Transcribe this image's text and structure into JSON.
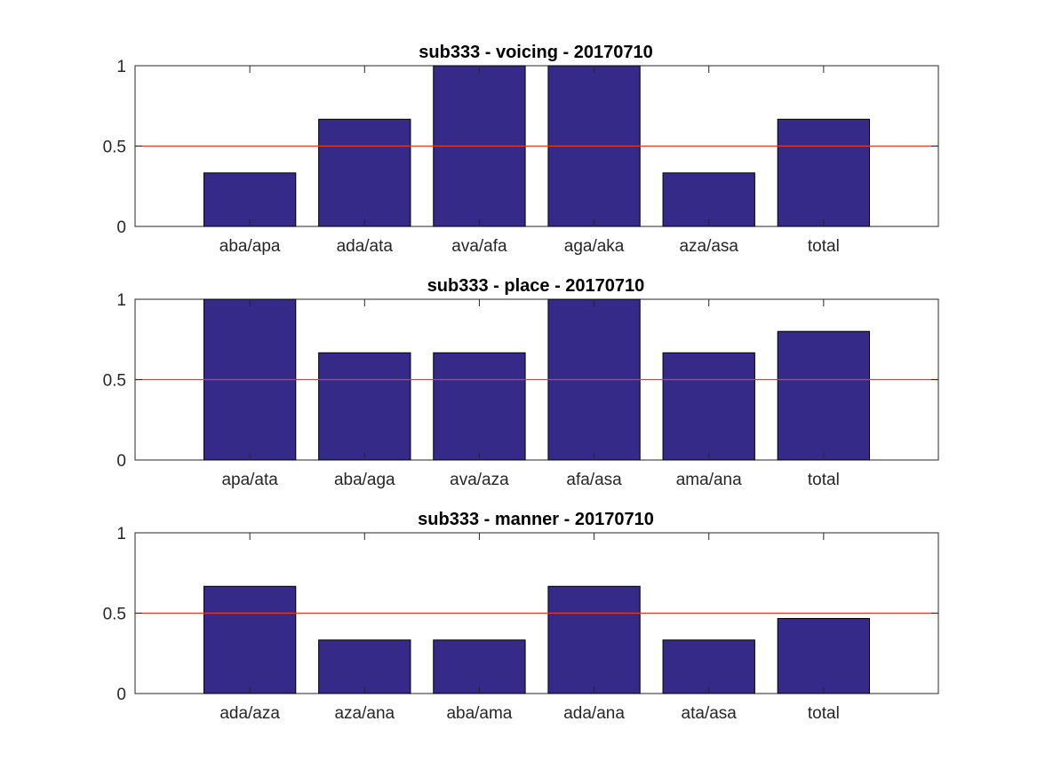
{
  "figure": {
    "background": "#ffffff"
  },
  "colors": {
    "bar": "#352a87",
    "bar_edge": "#000000",
    "reference_line": "#e8392a",
    "axis": "#262626"
  },
  "chart_data": [
    {
      "type": "bar",
      "title": "sub333 - voicing - 20170710",
      "categories": [
        "aba/apa",
        "ada/ata",
        "ava/afa",
        "aga/aka",
        "aza/asa",
        "total"
      ],
      "values": [
        0.333,
        0.667,
        1.0,
        1.0,
        0.333,
        0.667
      ],
      "ylim": [
        0,
        1
      ],
      "yticks": [
        0,
        0.5,
        1
      ],
      "ytick_labels": [
        "0",
        "0.5",
        "1"
      ],
      "reference_line": 0.5,
      "xlabel": "",
      "ylabel": "",
      "grid": false
    },
    {
      "type": "bar",
      "title": "sub333 - place - 20170710",
      "categories": [
        "apa/ata",
        "aba/aga",
        "ava/aza",
        "afa/asa",
        "ama/ana",
        "total"
      ],
      "values": [
        1.0,
        0.667,
        0.667,
        1.0,
        0.667,
        0.8
      ],
      "ylim": [
        0,
        1
      ],
      "yticks": [
        0,
        0.5,
        1
      ],
      "ytick_labels": [
        "0",
        "0.5",
        "1"
      ],
      "reference_line": 0.5,
      "xlabel": "",
      "ylabel": "",
      "grid": false
    },
    {
      "type": "bar",
      "title": "sub333 - manner - 20170710",
      "categories": [
        "ada/aza",
        "aza/ana",
        "aba/ama",
        "ada/ana",
        "ata/asa",
        "total"
      ],
      "values": [
        0.667,
        0.333,
        0.333,
        0.667,
        0.333,
        0.467
      ],
      "ylim": [
        0,
        1
      ],
      "yticks": [
        0,
        0.5,
        1
      ],
      "ytick_labels": [
        "0",
        "0.5",
        "1"
      ],
      "reference_line": 0.5,
      "xlabel": "",
      "ylabel": "",
      "grid": false
    }
  ]
}
